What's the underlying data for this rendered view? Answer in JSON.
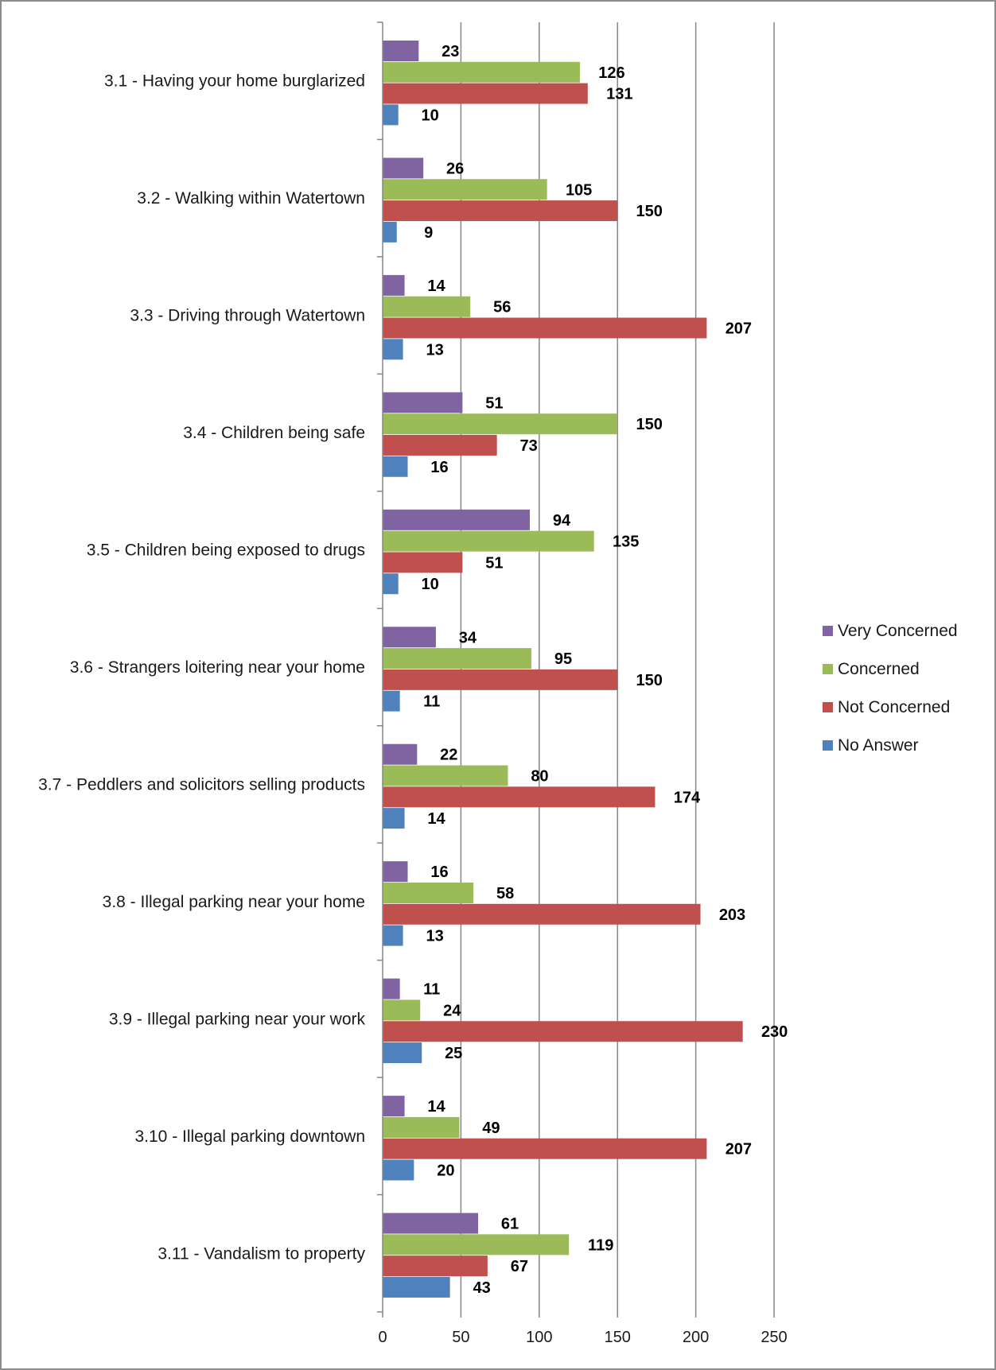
{
  "chart_data": {
    "type": "bar",
    "orientation": "horizontal",
    "categories": [
      "3.1 - Having your home burglarized",
      "3.2 - Walking within Watertown",
      "3.3 - Driving through Watertown",
      "3.4 - Children being safe",
      "3.5 - Children being exposed to drugs",
      "3.6 - Strangers loitering near your home",
      "3.7 - Peddlers and solicitors selling products",
      "3.8 - Illegal parking near your home",
      "3.9 - Illegal parking near your work",
      "3.10 - Illegal parking downtown",
      "3.11 - Vandalism to property"
    ],
    "series": [
      {
        "name": "Very Concerned",
        "color": "#8064A2",
        "values": [
          23,
          26,
          14,
          51,
          94,
          34,
          22,
          16,
          11,
          14,
          61
        ]
      },
      {
        "name": "Concerned",
        "color": "#9BBB59",
        "values": [
          126,
          105,
          56,
          150,
          135,
          95,
          80,
          58,
          24,
          49,
          119
        ]
      },
      {
        "name": "Not Concerned",
        "color": "#C0504D",
        "values": [
          131,
          150,
          207,
          73,
          51,
          150,
          174,
          203,
          230,
          207,
          67
        ]
      },
      {
        "name": "No Answer",
        "color": "#4F81BD",
        "values": [
          10,
          9,
          13,
          16,
          10,
          11,
          14,
          13,
          25,
          20,
          43
        ]
      }
    ],
    "xlim": [
      0,
      250
    ],
    "xticks": [
      0,
      50,
      100,
      150,
      200,
      250
    ],
    "grid": "vertical major gridlines",
    "legend_position": "right",
    "data_labels": true
  }
}
